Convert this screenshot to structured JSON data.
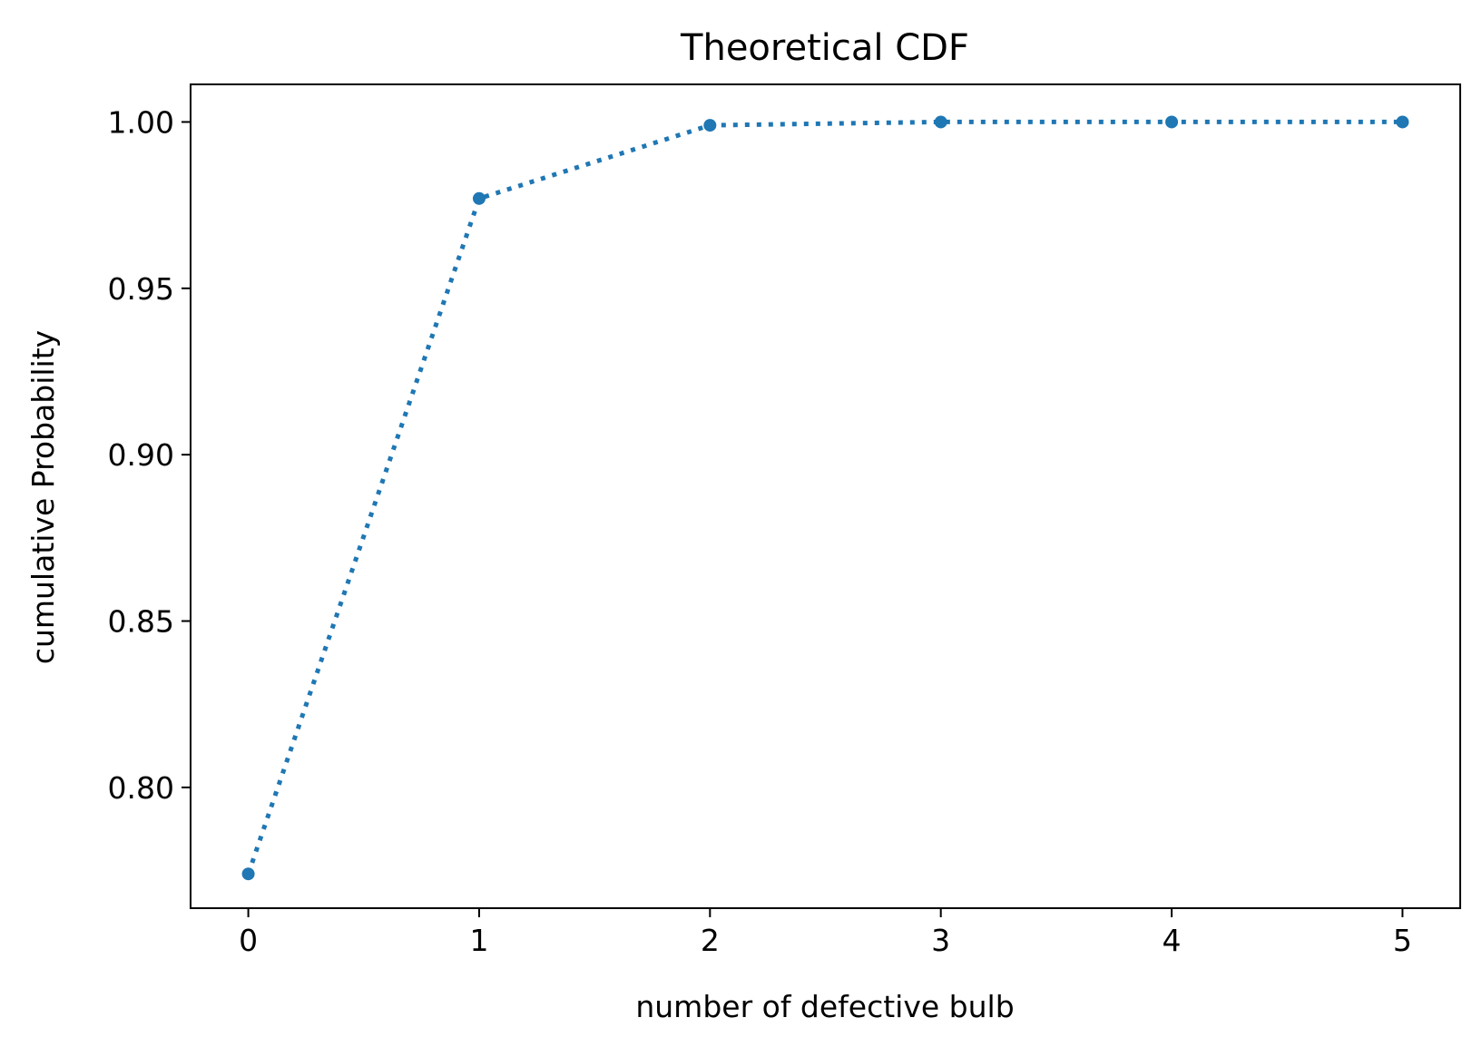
{
  "chart_data": {
    "type": "line",
    "title": "Theoretical CDF",
    "xlabel": "number of defective bulb",
    "ylabel": "cumulative Probability",
    "x": [
      0,
      1,
      2,
      3,
      4,
      5
    ],
    "series": [
      {
        "values": [
          0.774,
          0.977,
          0.999,
          1.0,
          1.0,
          1.0
        ]
      }
    ],
    "xlim": [
      -0.25,
      5.25
    ],
    "ylim": [
      0.7637,
      1.0113
    ],
    "xticks": [
      0,
      1,
      2,
      3,
      4,
      5
    ],
    "xtick_labels": [
      "0",
      "1",
      "2",
      "3",
      "4",
      "5"
    ],
    "yticks": [
      0.8,
      0.85,
      0.9,
      0.95,
      1.0
    ],
    "ytick_labels": [
      "0.80",
      "0.85",
      "0.90",
      "0.95",
      "1.00"
    ],
    "line_style": "dotted",
    "marker": "circle",
    "series_color": "#1f77b4",
    "grid": false,
    "legend": "none"
  }
}
